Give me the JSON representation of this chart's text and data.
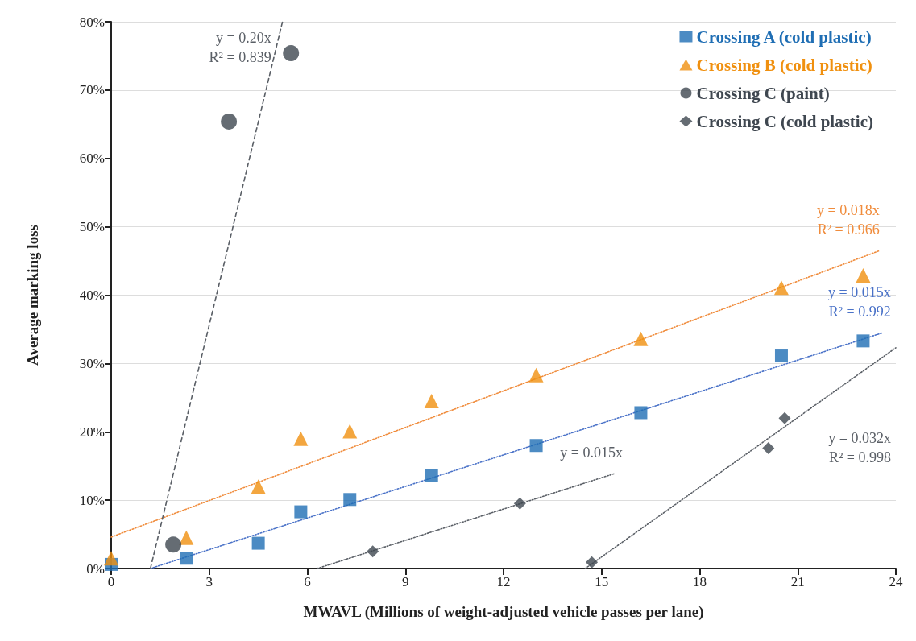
{
  "chart_data": {
    "type": "scatter",
    "xlabel": "MWAVL (Millions of weight-adjusted vehicle passes per lane)",
    "ylabel": "Average marking loss",
    "xlim": [
      0,
      24
    ],
    "xticks": [
      0,
      3,
      6,
      9,
      12,
      15,
      18,
      21,
      24
    ],
    "ylim": [
      0,
      80
    ],
    "yticks": [
      {
        "value": 0,
        "label": "0%"
      },
      {
        "value": 10,
        "label": "10%"
      },
      {
        "value": 20,
        "label": "20%"
      },
      {
        "value": 30,
        "label": "30%"
      },
      {
        "value": 40,
        "label": "40%"
      },
      {
        "value": 50,
        "label": "50%"
      },
      {
        "value": 60,
        "label": "60%"
      },
      {
        "value": 70,
        "label": "70%"
      },
      {
        "value": 80,
        "label": "80%"
      }
    ],
    "grid": "y",
    "legend": "top right",
    "series": [
      {
        "name": "Crossing A (cold plastic)",
        "color": "#1f6eb4",
        "marker": "square",
        "x": [
          0,
          2.3,
          4.5,
          5.8,
          7.3,
          9.8,
          13.0,
          16.2,
          20.5,
          23.0
        ],
        "values": [
          0.6,
          1.5,
          3.7,
          8.3,
          10.1,
          13.6,
          18.0,
          22.8,
          31.1,
          33.3
        ]
      },
      {
        "name": "Crossing B (cold plastic)",
        "color": "#f0900f",
        "marker": "triangle",
        "x": [
          0,
          2.3,
          4.5,
          5.8,
          7.3,
          9.8,
          13.0,
          16.2,
          20.5,
          23.0
        ],
        "values": [
          1.5,
          4.5,
          12.0,
          19.0,
          20.1,
          24.5,
          28.3,
          33.6,
          41.1,
          42.9
        ]
      },
      {
        "name": "Crossing C (paint)",
        "color": "#3f4750",
        "marker": "circle",
        "x": [
          1.9,
          3.6,
          5.5
        ],
        "values": [
          3.5,
          65.4,
          75.4
        ]
      },
      {
        "name": "Crossing C (cold plastic)",
        "color": "#3f4750",
        "marker": "diamond",
        "x": [
          8.0,
          12.5,
          14.7,
          20.1,
          20.6
        ],
        "values": [
          2.5,
          9.5,
          0.9,
          17.6,
          22.0
        ]
      },
      {
        "name": "y = 0.015x\nR² = 0.992",
        "type": "line",
        "color": "#4a72c8",
        "line_style": "dotted",
        "marker": "none",
        "x": [
          1.2,
          23.6
        ],
        "values": [
          0,
          34.5
        ]
      },
      {
        "name": "y = 0.018x\nR² = 0.966",
        "type": "line",
        "color": "#f08c3c",
        "line_style": "dotted",
        "marker": "none",
        "x": [
          0,
          23.5
        ],
        "values": [
          4.6,
          46.5
        ]
      },
      {
        "name": "y = 0.20x\nR² = 0.839",
        "type": "line",
        "color": "#5a5f66",
        "line_style": "dashed",
        "marker": "none",
        "x": [
          1.2,
          5.24
        ],
        "values": [
          0,
          80
        ]
      },
      {
        "name": "y = 0.015x",
        "type": "line",
        "color": "#5a5f66",
        "line_style": "dotted",
        "marker": "none",
        "x": [
          6.3,
          15.4
        ],
        "values": [
          0,
          13.9
        ]
      },
      {
        "name": "y = 0.032x\nR² = 0.998",
        "type": "line",
        "color": "#5a5f66",
        "line_style": "dotted",
        "marker": "none",
        "x": [
          14.5,
          24
        ],
        "values": [
          0,
          32.3
        ]
      }
    ]
  }
}
